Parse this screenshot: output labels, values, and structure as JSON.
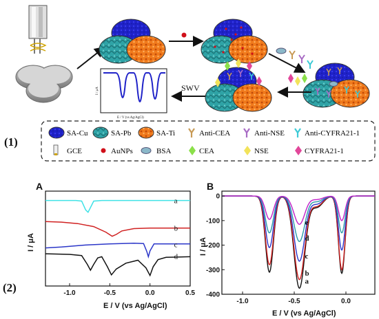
{
  "part_labels": {
    "scheme": "(1)",
    "charts": "(2)"
  },
  "scheme": {
    "swv_arrow_label": "SWV",
    "inset_axis": {
      "x_label": "E / V (vs Ag/AgCl)",
      "y_label": "I / μA"
    },
    "legend": {
      "row1": [
        "SA-Cu",
        "SA-Pb",
        "SA-Ti",
        "Anti-CEA",
        "Anti-NSE",
        "Anti-CYFRA21-1"
      ],
      "row2": [
        "GCE",
        "AuNPs",
        "BSA",
        "CEA",
        "NSE",
        "CYFRA21-1"
      ]
    },
    "colors": {
      "sa_cu": "#1f22c8",
      "sa_pb": "#2fa3a6",
      "sa_ti": "#f07a1c",
      "anti_cea": "#c89a55",
      "anti_nse": "#a86bc4",
      "anti_cyfra": "#3ccad6",
      "auNPs": "#d0101a",
      "bsa": "#8bb8c9",
      "cea": "#8be04a",
      "nse": "#f2e35a",
      "cyfra": "#e2479a"
    }
  },
  "chart_data": [
    {
      "panel": "A",
      "type": "line",
      "xlabel": "E / V (vs Ag/AgCl)",
      "ylabel": "I / μA",
      "xlim": [
        -1.3,
        0.5
      ],
      "x_ticks": [
        "-1.0",
        "-0.5",
        "0.0",
        "0.5"
      ],
      "y_tick_labels": false,
      "series": [
        {
          "name": "a",
          "color": "#3fe2e6",
          "offset": 0.0,
          "scale": 1.0,
          "points": [
            [
              -1.3,
              0
            ],
            [
              -0.92,
              0
            ],
            [
              -0.85,
              -0.05
            ],
            [
              -0.8,
              -0.8
            ],
            [
              -0.77,
              -1.0
            ],
            [
              -0.74,
              -0.6
            ],
            [
              -0.7,
              -0.05
            ],
            [
              -0.6,
              0
            ],
            [
              0.5,
              0
            ]
          ]
        },
        {
          "name": "b",
          "color": "#d02020",
          "offset": -2.35,
          "scale": 1.0,
          "points": [
            [
              -1.3,
              0.55
            ],
            [
              -1.1,
              0.5
            ],
            [
              -0.9,
              0.38
            ],
            [
              -0.7,
              0.12
            ],
            [
              -0.55,
              -0.35
            ],
            [
              -0.47,
              -0.7
            ],
            [
              -0.42,
              -0.55
            ],
            [
              -0.35,
              -0.25
            ],
            [
              -0.2,
              -0.05
            ],
            [
              0,
              0
            ],
            [
              0.5,
              0
            ]
          ]
        },
        {
          "name": "c",
          "color": "#2a35c8",
          "offset": -3.75,
          "scale": 1.0,
          "points": [
            [
              -1.3,
              -0.3
            ],
            [
              -1.1,
              -0.22
            ],
            [
              -0.8,
              -0.05
            ],
            [
              -0.5,
              0.05
            ],
            [
              -0.2,
              0.1
            ],
            [
              -0.08,
              0.08
            ],
            [
              -0.04,
              -0.6
            ],
            [
              -0.02,
              -1.05
            ],
            [
              0.0,
              -0.55
            ],
            [
              0.05,
              0.05
            ],
            [
              0.5,
              0.05
            ]
          ]
        },
        {
          "name": "d",
          "color": "#111111",
          "offset": -4.75,
          "scale": 1.0,
          "points": [
            [
              -1.3,
              0.2
            ],
            [
              -1.0,
              0.15
            ],
            [
              -0.85,
              0.05
            ],
            [
              -0.78,
              -0.7
            ],
            [
              -0.74,
              -1.2
            ],
            [
              -0.7,
              -0.7
            ],
            [
              -0.65,
              -0.15
            ],
            [
              -0.6,
              -0.05
            ],
            [
              -0.53,
              -0.9
            ],
            [
              -0.48,
              -1.6
            ],
            [
              -0.42,
              -1.1
            ],
            [
              -0.3,
              -0.6
            ],
            [
              -0.15,
              -0.35
            ],
            [
              -0.05,
              -1.0
            ],
            [
              0.0,
              -1.65
            ],
            [
              0.04,
              -0.9
            ],
            [
              0.1,
              -0.3
            ],
            [
              0.2,
              -0.1
            ],
            [
              0.5,
              -0.05
            ]
          ]
        }
      ],
      "series_label_x": 0.3
    },
    {
      "panel": "B",
      "type": "line",
      "xlabel": "E / V (vs Ag/AgCl)",
      "ylabel": "I / μA",
      "xlim": [
        -1.2,
        0.28
      ],
      "ylim": [
        -400,
        20
      ],
      "x_ticks": [
        "-1.0",
        "-0.5",
        "0.0"
      ],
      "y_ticks": [
        "0",
        "-100",
        "-200",
        "-300",
        "-400"
      ],
      "peaks_x": [
        -0.74,
        -0.45,
        -0.04
      ],
      "series": [
        {
          "name": "a",
          "color": "#111111",
          "peaks": [
            -310,
            -375,
            -315
          ]
        },
        {
          "name": "b",
          "color": "#d02020",
          "peaks": [
            -280,
            -340,
            -300
          ]
        },
        {
          "name": "c",
          "color": "#2a35c8",
          "peaks": [
            -210,
            -265,
            -220
          ]
        },
        {
          "name": "d",
          "color": "#2a9aa8",
          "peaks": [
            -150,
            -185,
            -150
          ]
        },
        {
          "name": "e",
          "color": "#c020c8",
          "peaks": [
            -95,
            -115,
            -100
          ]
        }
      ]
    }
  ]
}
